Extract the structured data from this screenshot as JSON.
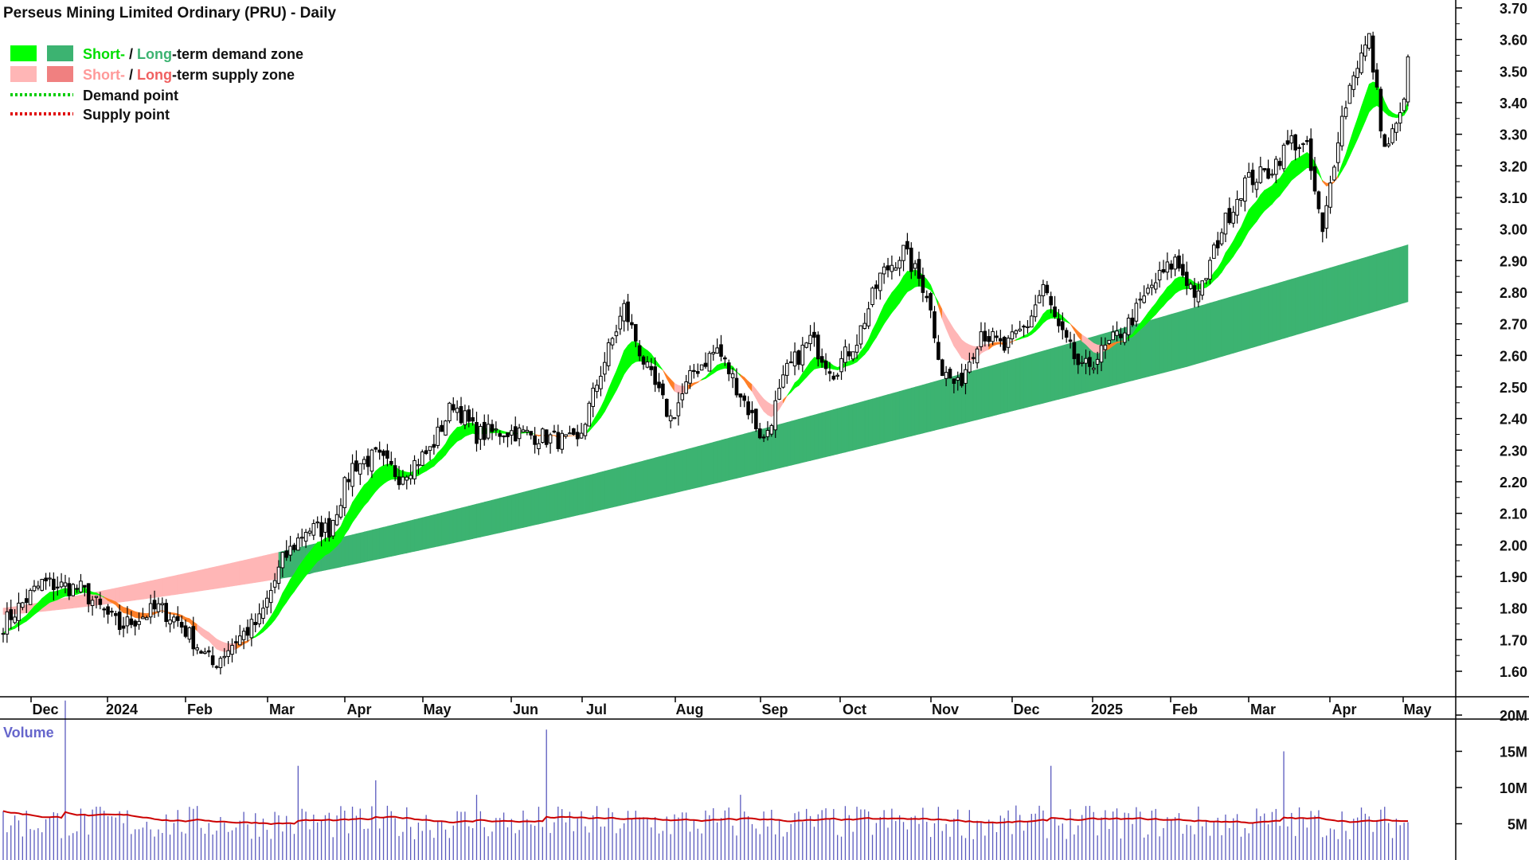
{
  "chart_data": {
    "type": "candlestick",
    "title": "Perseus Mining Limited Ordinary (PRU) - Daily",
    "legend": {
      "demand_zone": {
        "short": "Short-",
        "sep": " / ",
        "long": "Long",
        "rest": "-term demand zone"
      },
      "supply_zone": {
        "short": "Short-",
        "sep": " / ",
        "long": "Long",
        "rest": "-term supply zone"
      },
      "demand_point": "Demand point",
      "supply_point": "Supply point"
    },
    "x_tick_labels": [
      "Dec",
      "2024",
      "Feb",
      "Mar",
      "Apr",
      "May",
      "Jun",
      "Jul",
      "Aug",
      "Sep",
      "Oct",
      "Nov",
      "Dec",
      "2025",
      "Feb",
      "Mar",
      "Apr",
      "May"
    ],
    "y_tick_labels": [
      "3.70",
      "3.60",
      "3.50",
      "3.40",
      "3.30",
      "3.20",
      "3.10",
      "3.00",
      "2.90",
      "2.80",
      "2.70",
      "2.60",
      "2.50",
      "2.40",
      "2.30",
      "2.20",
      "2.10",
      "2.00",
      "1.90",
      "1.80",
      "1.70",
      "1.60"
    ],
    "ylim": [
      1.52,
      3.72
    ],
    "price_anchors": [
      [
        0,
        1.75
      ],
      [
        10,
        1.88
      ],
      [
        20,
        1.86
      ],
      [
        30,
        1.74
      ],
      [
        40,
        1.8
      ],
      [
        45,
        1.76
      ],
      [
        54,
        1.62
      ],
      [
        60,
        1.7
      ],
      [
        66,
        1.76
      ],
      [
        72,
        1.95
      ],
      [
        78,
        2.05
      ],
      [
        84,
        2.05
      ],
      [
        90,
        2.25
      ],
      [
        96,
        2.28
      ],
      [
        102,
        2.22
      ],
      [
        110,
        2.3
      ],
      [
        116,
        2.45
      ],
      [
        122,
        2.35
      ],
      [
        130,
        2.36
      ],
      [
        140,
        2.34
      ],
      [
        148,
        2.32
      ],
      [
        154,
        2.55
      ],
      [
        160,
        2.75
      ],
      [
        166,
        2.55
      ],
      [
        172,
        2.4
      ],
      [
        178,
        2.55
      ],
      [
        184,
        2.62
      ],
      [
        190,
        2.48
      ],
      [
        196,
        2.33
      ],
      [
        202,
        2.55
      ],
      [
        208,
        2.65
      ],
      [
        214,
        2.55
      ],
      [
        220,
        2.65
      ],
      [
        226,
        2.85
      ],
      [
        232,
        2.93
      ],
      [
        238,
        2.8
      ],
      [
        242,
        2.55
      ],
      [
        246,
        2.5
      ],
      [
        252,
        2.68
      ],
      [
        258,
        2.62
      ],
      [
        264,
        2.7
      ],
      [
        268,
        2.82
      ],
      [
        272,
        2.68
      ],
      [
        278,
        2.55
      ],
      [
        284,
        2.62
      ],
      [
        290,
        2.7
      ],
      [
        296,
        2.82
      ],
      [
        302,
        2.9
      ],
      [
        308,
        2.78
      ],
      [
        314,
        3.0
      ],
      [
        320,
        3.15
      ],
      [
        326,
        3.18
      ],
      [
        332,
        3.28
      ],
      [
        336,
        3.25
      ],
      [
        340,
        2.98
      ],
      [
        344,
        3.3
      ],
      [
        348,
        3.5
      ],
      [
        352,
        3.6
      ],
      [
        356,
        3.25
      ],
      [
        360,
        3.35
      ],
      [
        362,
        3.52
      ]
    ],
    "volume": {
      "label": "Volume",
      "y_tick_labels": [
        "20M",
        "15M",
        "10M",
        "5M"
      ],
      "ylim": [
        0,
        22
      ],
      "baseline_m": 5.2,
      "spikes": [
        [
          16,
          22
        ],
        [
          76,
          13
        ],
        [
          96,
          11
        ],
        [
          122,
          9
        ],
        [
          140,
          18
        ],
        [
          190,
          9
        ],
        [
          270,
          13
        ],
        [
          330,
          15
        ]
      ]
    },
    "colors": {
      "short_demand": "#00FF00",
      "long_demand": "#3CB371",
      "short_supply": "#FFB6B6",
      "long_supply": "#F08080",
      "demand_point": "#00CC00",
      "supply_point": "#E00000",
      "supply_band_transition": "#FF7F27",
      "candle": "#000000",
      "volume_bar": "#5A5ABE",
      "volume_ma": "#CC0000",
      "volume_label": "#6666CC"
    }
  }
}
